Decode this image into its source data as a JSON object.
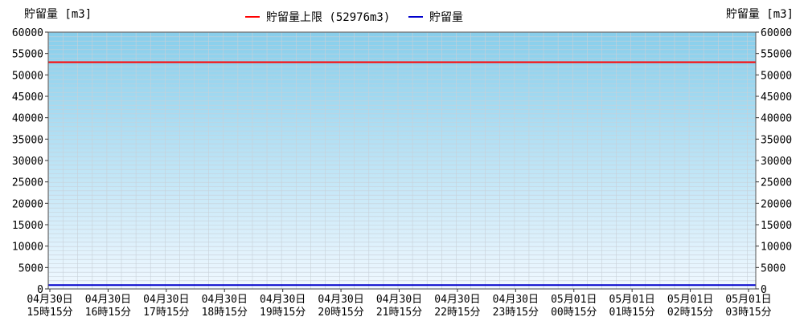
{
  "chart_data": {
    "type": "line",
    "y_axis_label_left": "貯留量 [m3]",
    "y_axis_label_right": "貯留量 [m3]",
    "ylim": [
      0,
      60000
    ],
    "y_ticks": [
      "0",
      "5000",
      "10000",
      "15000",
      "20000",
      "25000",
      "30000",
      "35000",
      "40000",
      "45000",
      "50000",
      "55000",
      "60000"
    ],
    "x_tick_labels": [
      [
        "04月30日",
        "15時15分"
      ],
      [
        "04月30日",
        "16時15分"
      ],
      [
        "04月30日",
        "17時15分"
      ],
      [
        "04月30日",
        "18時15分"
      ],
      [
        "04月30日",
        "19時15分"
      ],
      [
        "04月30日",
        "20時15分"
      ],
      [
        "04月30日",
        "21時15分"
      ],
      [
        "04月30日",
        "22時15分"
      ],
      [
        "04月30日",
        "23時15分"
      ],
      [
        "05月01日",
        "00時15分"
      ],
      [
        "05月01日",
        "01時15分"
      ],
      [
        "05月01日",
        "02時15分"
      ],
      [
        "05月01日",
        "03時15分"
      ]
    ],
    "grid": true,
    "legend_position": "top-center",
    "series": [
      {
        "name": "貯留量上限 (52976m3)",
        "color": "#ff0000",
        "values": [
          52976,
          52976,
          52976,
          52976,
          52976,
          52976,
          52976,
          52976,
          52976,
          52976,
          52976,
          52976,
          52976
        ]
      },
      {
        "name": "貯留量",
        "color": "#0000cc",
        "values": [
          900,
          900,
          900,
          900,
          900,
          900,
          900,
          900,
          900,
          900,
          900,
          900,
          900
        ]
      }
    ],
    "background_gradient": [
      "#87ceeb",
      "#f0f8ff"
    ]
  }
}
